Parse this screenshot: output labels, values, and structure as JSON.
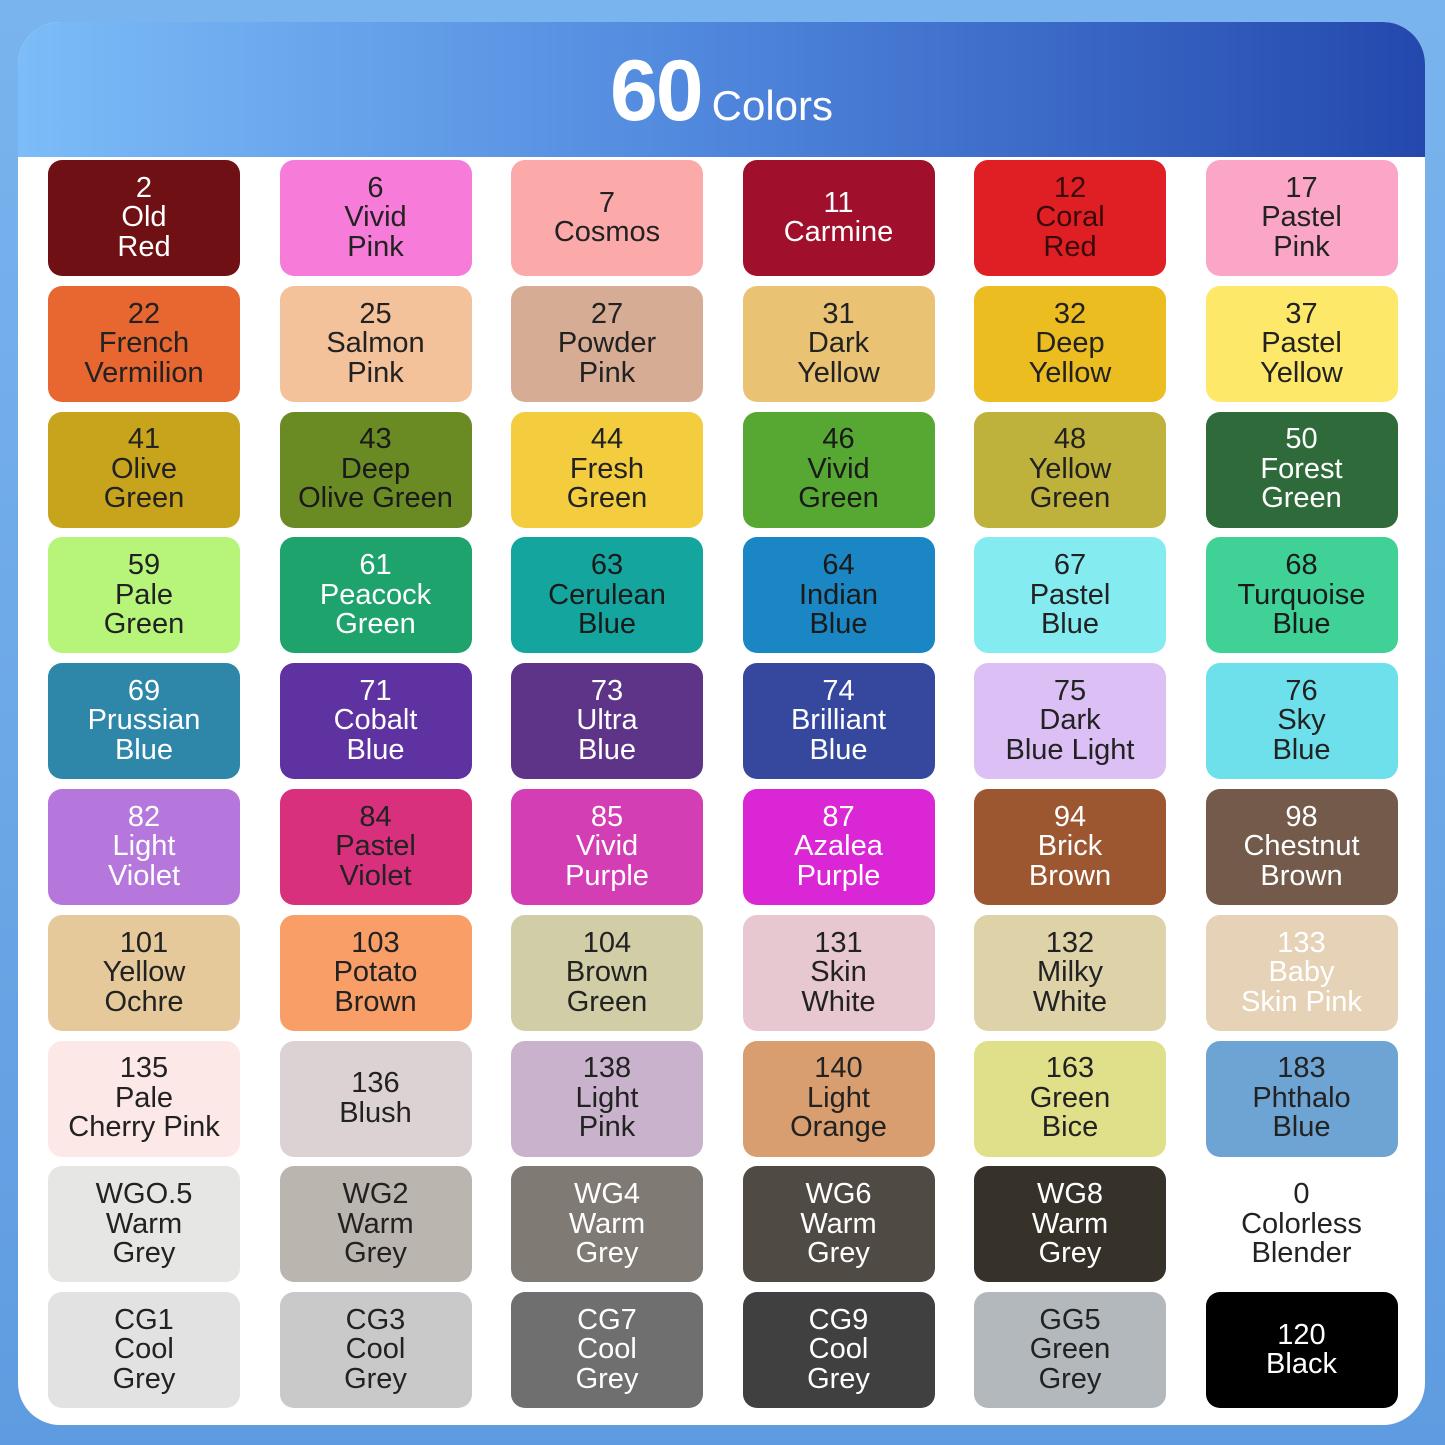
{
  "header": {
    "count": "60",
    "label": "Colors"
  },
  "swatches": [
    {
      "code": "2",
      "name": [
        "Old",
        "Red"
      ],
      "bg": "#6e1014",
      "fg": "#ffffff"
    },
    {
      "code": "6",
      "name": [
        "Vivid",
        "Pink"
      ],
      "bg": "#f77bd8",
      "fg": "#222222"
    },
    {
      "code": "7",
      "name": [
        "Cosmos"
      ],
      "bg": "#fca9a9",
      "fg": "#222222"
    },
    {
      "code": "11",
      "name": [
        "Carmine"
      ],
      "bg": "#a0102c",
      "fg": "#ffffff"
    },
    {
      "code": "12",
      "name": [
        "Coral",
        "Red"
      ],
      "bg": "#e01f24",
      "fg": "#3a0a0a"
    },
    {
      "code": "17",
      "name": [
        "Pastel",
        "Pink"
      ],
      "bg": "#fba6c6",
      "fg": "#222222"
    },
    {
      "code": "22",
      "name": [
        "French",
        "Vermilion"
      ],
      "bg": "#e86630",
      "fg": "#222222"
    },
    {
      "code": "25",
      "name": [
        "Salmon",
        "Pink"
      ],
      "bg": "#f4c29a",
      "fg": "#222222"
    },
    {
      "code": "27",
      "name": [
        "Powder",
        "Pink"
      ],
      "bg": "#d6ac94",
      "fg": "#222222"
    },
    {
      "code": "31",
      "name": [
        "Dark",
        "Yellow"
      ],
      "bg": "#e9c373",
      "fg": "#222222"
    },
    {
      "code": "32",
      "name": [
        "Deep",
        "Yellow"
      ],
      "bg": "#ebbd20",
      "fg": "#222222"
    },
    {
      "code": "37",
      "name": [
        "Pastel",
        "Yellow"
      ],
      "bg": "#fde869",
      "fg": "#222222"
    },
    {
      "code": "41",
      "name": [
        "Olive",
        "Green"
      ],
      "bg": "#c8a41c",
      "fg": "#222222"
    },
    {
      "code": "43",
      "name": [
        "Deep",
        "Olive Green"
      ],
      "bg": "#6a8a24",
      "fg": "#1a1a1a"
    },
    {
      "code": "44",
      "name": [
        "Fresh",
        "Green"
      ],
      "bg": "#f4cd3e",
      "fg": "#222222"
    },
    {
      "code": "46",
      "name": [
        "Vivid",
        "Green"
      ],
      "bg": "#56a832",
      "fg": "#1a1a1a"
    },
    {
      "code": "48",
      "name": [
        "Yellow",
        "Green"
      ],
      "bg": "#bfb23c",
      "fg": "#222222"
    },
    {
      "code": "50",
      "name": [
        "Forest",
        "Green"
      ],
      "bg": "#2f6b3a",
      "fg": "#ffffff"
    },
    {
      "code": "59",
      "name": [
        "Pale",
        "Green"
      ],
      "bg": "#b6f57a",
      "fg": "#222222"
    },
    {
      "code": "61",
      "name": [
        "Peacock",
        "Green"
      ],
      "bg": "#1fa36c",
      "fg": "#ffffff"
    },
    {
      "code": "63",
      "name": [
        "Cerulean",
        "Blue"
      ],
      "bg": "#14a59e",
      "fg": "#1a1a1a"
    },
    {
      "code": "64",
      "name": [
        "Indian",
        "Blue"
      ],
      "bg": "#1a86c4",
      "fg": "#1a1a1a"
    },
    {
      "code": "67",
      "name": [
        "Pastel",
        "Blue"
      ],
      "bg": "#84ecf0",
      "fg": "#222222"
    },
    {
      "code": "68",
      "name": [
        "Turquoise",
        "Blue"
      ],
      "bg": "#40d196",
      "fg": "#1a1a1a"
    },
    {
      "code": "69",
      "name": [
        "Prussian",
        "Blue"
      ],
      "bg": "#2e86a8",
      "fg": "#ffffff"
    },
    {
      "code": "71",
      "name": [
        "Cobalt",
        "Blue"
      ],
      "bg": "#5e32a0",
      "fg": "#ffffff"
    },
    {
      "code": "73",
      "name": [
        "Ultra",
        "Blue"
      ],
      "bg": "#5e3488",
      "fg": "#ffffff"
    },
    {
      "code": "74",
      "name": [
        "Brilliant",
        "Blue"
      ],
      "bg": "#36489e",
      "fg": "#ffffff"
    },
    {
      "code": "75",
      "name": [
        "Dark",
        "Blue Light"
      ],
      "bg": "#dcbff5",
      "fg": "#222222"
    },
    {
      "code": "76",
      "name": [
        "Sky",
        "Blue"
      ],
      "bg": "#6ee0ec",
      "fg": "#222222"
    },
    {
      "code": "82",
      "name": [
        "Light",
        "Violet"
      ],
      "bg": "#b677dc",
      "fg": "#ffffff"
    },
    {
      "code": "84",
      "name": [
        "Pastel",
        "Violet"
      ],
      "bg": "#d8307c",
      "fg": "#222222"
    },
    {
      "code": "85",
      "name": [
        "Vivid",
        "Purple"
      ],
      "bg": "#d43eb4",
      "fg": "#ffffff"
    },
    {
      "code": "87",
      "name": [
        "Azalea",
        "Purple"
      ],
      "bg": "#db26d6",
      "fg": "#ffffff"
    },
    {
      "code": "94",
      "name": [
        "Brick",
        "Brown"
      ],
      "bg": "#9c5630",
      "fg": "#ffffff"
    },
    {
      "code": "98",
      "name": [
        "Chestnut",
        "Brown"
      ],
      "bg": "#735a4a",
      "fg": "#ffffff"
    },
    {
      "code": "101",
      "name": [
        "Yellow",
        "Ochre"
      ],
      "bg": "#e6c99a",
      "fg": "#222222"
    },
    {
      "code": "103",
      "name": [
        "Potato",
        "Brown"
      ],
      "bg": "#f89e66",
      "fg": "#222222"
    },
    {
      "code": "104",
      "name": [
        "Brown",
        "Green"
      ],
      "bg": "#d1cda6",
      "fg": "#222222"
    },
    {
      "code": "131",
      "name": [
        "Skin",
        "White"
      ],
      "bg": "#e8c8d0",
      "fg": "#222222"
    },
    {
      "code": "132",
      "name": [
        "Milky",
        "White"
      ],
      "bg": "#ddd2a8",
      "fg": "#222222"
    },
    {
      "code": "133",
      "name": [
        "Baby",
        "Skin Pink"
      ],
      "bg": "#e6d2b6",
      "fg": "#ffffff"
    },
    {
      "code": "135",
      "name": [
        "Pale",
        "Cherry Pink"
      ],
      "bg": "#fde8e8",
      "fg": "#222222"
    },
    {
      "code": "136",
      "name": [
        "Blush"
      ],
      "bg": "#dcd2d4",
      "fg": "#222222"
    },
    {
      "code": "138",
      "name": [
        "Light",
        "Pink"
      ],
      "bg": "#c9b2cc",
      "fg": "#222222"
    },
    {
      "code": "140",
      "name": [
        "Light",
        "Orange"
      ],
      "bg": "#d89e70",
      "fg": "#222222"
    },
    {
      "code": "163",
      "name": [
        "Green",
        "Bice"
      ],
      "bg": "#e1e08a",
      "fg": "#222222"
    },
    {
      "code": "183",
      "name": [
        "Phthalo",
        "Blue"
      ],
      "bg": "#6ea4d4",
      "fg": "#222222"
    },
    {
      "code": "WGO.5",
      "name": [
        "Warm",
        "Grey"
      ],
      "bg": "#e6e6e4",
      "fg": "#222222"
    },
    {
      "code": "WG2",
      "name": [
        "Warm",
        "Grey"
      ],
      "bg": "#bab5ae",
      "fg": "#222222"
    },
    {
      "code": "WG4",
      "name": [
        "Warm",
        "Grey"
      ],
      "bg": "#7f7a74",
      "fg": "#ffffff"
    },
    {
      "code": "WG6",
      "name": [
        "Warm",
        "Grey"
      ],
      "bg": "#4f4b44",
      "fg": "#ffffff"
    },
    {
      "code": "WG8",
      "name": [
        "Warm",
        "Grey"
      ],
      "bg": "#36322a",
      "fg": "#ffffff"
    },
    {
      "code": "0",
      "name": [
        "Colorless",
        "Blender"
      ],
      "bg": "#ffffff",
      "fg": "#222222"
    },
    {
      "code": "CG1",
      "name": [
        "Cool",
        "Grey"
      ],
      "bg": "#e2e2e2",
      "fg": "#222222"
    },
    {
      "code": "CG3",
      "name": [
        "Cool",
        "Grey"
      ],
      "bg": "#c9c9c9",
      "fg": "#222222"
    },
    {
      "code": "CG7",
      "name": [
        "Cool",
        "Grey"
      ],
      "bg": "#6f6f6f",
      "fg": "#ffffff"
    },
    {
      "code": "CG9",
      "name": [
        "Cool",
        "Grey"
      ],
      "bg": "#404040",
      "fg": "#ffffff"
    },
    {
      "code": "GG5",
      "name": [
        "Green",
        "Grey"
      ],
      "bg": "#b2b8bc",
      "fg": "#222222"
    },
    {
      "code": "120",
      "name": [
        "Black"
      ],
      "bg": "#000000",
      "fg": "#ffffff"
    }
  ]
}
